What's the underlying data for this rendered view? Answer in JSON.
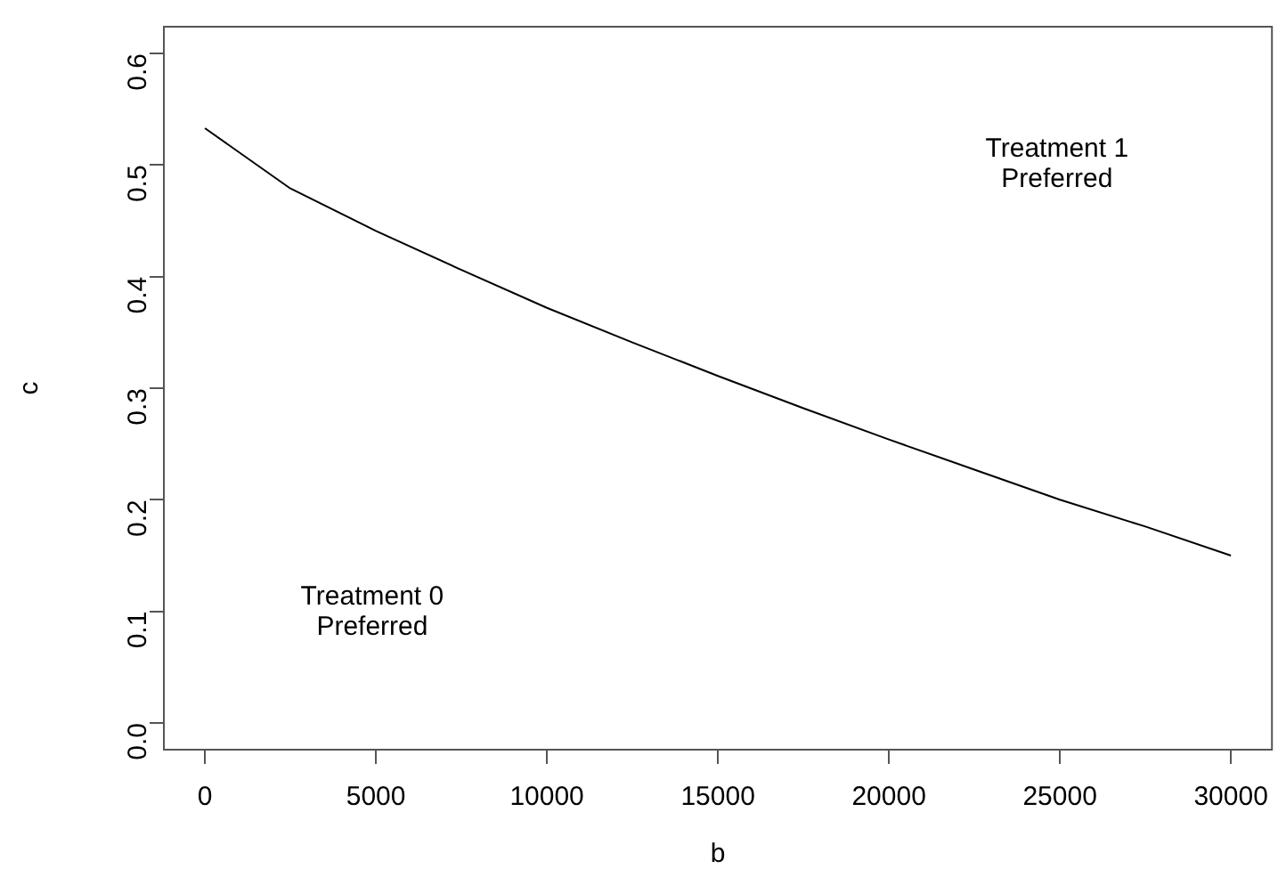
{
  "chart_data": {
    "type": "line",
    "xlabel": "b",
    "ylabel": "c",
    "x": [
      0,
      2500,
      5000,
      7500,
      10000,
      12500,
      15000,
      17500,
      20000,
      22500,
      25000,
      27500,
      30000
    ],
    "series": [
      {
        "color": "#000000",
        "values": [
          0.533,
          0.479,
          0.441,
          0.406,
          0.372,
          0.341,
          0.311,
          0.282,
          0.254,
          0.227,
          0.2,
          0.176,
          0.15
        ]
      }
    ],
    "xlim": [
      -1200,
      31200
    ],
    "xticks": [
      0,
      5000,
      10000,
      15000,
      20000,
      25000,
      30000
    ],
    "ylim": [
      -0.024,
      0.624
    ],
    "yticks": [
      {
        "value": 0,
        "label": "0.0"
      },
      0.1,
      0.2,
      0.3,
      0.4,
      0.5,
      0.6
    ],
    "annotations": [
      "Treatment 1\nPreferred",
      "Treatment 0\nPreferred"
    ],
    "grid": false,
    "legend": false,
    "marker": "none",
    "line_style": "solid"
  }
}
